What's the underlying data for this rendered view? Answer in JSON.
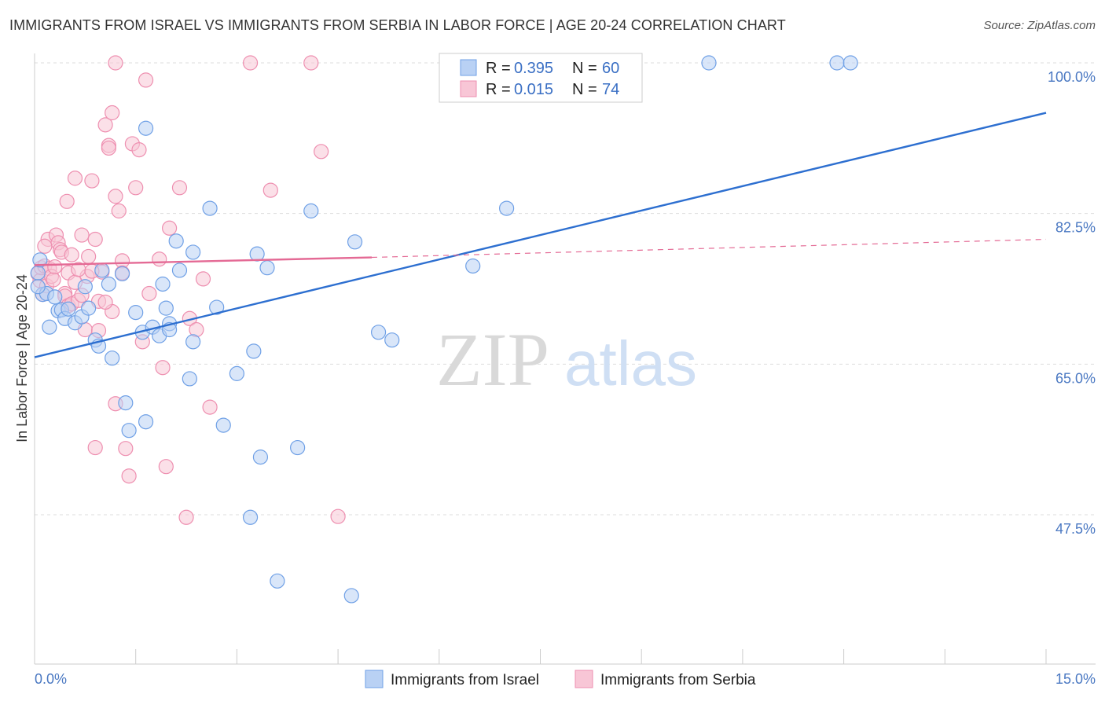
{
  "title": "IMMIGRANTS FROM ISRAEL VS IMMIGRANTS FROM SERBIA IN LABOR FORCE | AGE 20-24 CORRELATION CHART",
  "source": "Source: ZipAtlas.com",
  "watermark": {
    "zip": "ZIP",
    "atlas": "atlas"
  },
  "legend": {
    "rows": [
      {
        "r_label": "R =",
        "r_value": "0.395",
        "n_label": "N =",
        "n_value": "60"
      },
      {
        "r_label": "R =",
        "r_value": "0.015",
        "n_label": "N =",
        "n_value": "74"
      }
    ]
  },
  "chart_data": {
    "type": "scatter",
    "title": "IMMIGRANTS FROM ISRAEL VS IMMIGRANTS FROM SERBIA IN LABOR FORCE | AGE 20-24 CORRELATION CHART",
    "xlabel": "",
    "ylabel": "In Labor Force | Age 20-24",
    "xlim": [
      0,
      15
    ],
    "ylim": [
      31.5,
      102
    ],
    "x_tick_labels": [
      {
        "value": 0,
        "label": "0.0%"
      },
      {
        "value": 15,
        "label": "15.0%"
      }
    ],
    "y_tick_labels": [
      {
        "value": 100,
        "label": "100.0%"
      },
      {
        "value": 82.5,
        "label": "82.5%"
      },
      {
        "value": 65,
        "label": "65.0%"
      },
      {
        "value": 47.5,
        "label": "47.5%"
      }
    ],
    "y_grid": [
      100,
      82.5,
      65,
      47.5
    ],
    "grid": true,
    "legend_position": "top-center",
    "series": [
      {
        "name": "Immigrants from Israel",
        "color": "#6fa0e6",
        "fill": "#b9d1f4",
        "r": 0.395,
        "n": 60,
        "trend": {
          "x": [
            0,
            15
          ],
          "y": [
            65.8,
            94.2
          ],
          "color": "#2d6fd0"
        },
        "points": [
          [
            0.05,
            75.6
          ],
          [
            0.08,
            77.1
          ],
          [
            0.12,
            73.1
          ],
          [
            0.18,
            73.2
          ],
          [
            0.22,
            69.3
          ],
          [
            0.3,
            72.8
          ],
          [
            0.35,
            71.2
          ],
          [
            0.4,
            71.3
          ],
          [
            0.45,
            70.3
          ],
          [
            0.5,
            71.4
          ],
          [
            0.6,
            69.8
          ],
          [
            0.7,
            70.5
          ],
          [
            0.75,
            74.0
          ],
          [
            0.8,
            71.5
          ],
          [
            0.9,
            67.8
          ],
          [
            0.95,
            67.1
          ],
          [
            1.0,
            75.9
          ],
          [
            1.1,
            74.3
          ],
          [
            1.15,
            65.7
          ],
          [
            1.3,
            75.5
          ],
          [
            1.35,
            60.5
          ],
          [
            1.4,
            57.3
          ],
          [
            1.5,
            71.0
          ],
          [
            1.6,
            68.7
          ],
          [
            1.65,
            58.3
          ],
          [
            1.65,
            92.4
          ],
          [
            1.75,
            69.3
          ],
          [
            1.85,
            68.3
          ],
          [
            1.9,
            74.3
          ],
          [
            1.95,
            71.5
          ],
          [
            2.0,
            69.7
          ],
          [
            2.0,
            69.0
          ],
          [
            2.1,
            79.3
          ],
          [
            2.15,
            75.9
          ],
          [
            2.3,
            63.3
          ],
          [
            2.35,
            78.0
          ],
          [
            2.35,
            67.6
          ],
          [
            2.6,
            83.1
          ],
          [
            2.7,
            71.6
          ],
          [
            2.8,
            57.9
          ],
          [
            3.0,
            63.9
          ],
          [
            3.2,
            47.2
          ],
          [
            3.25,
            66.5
          ],
          [
            3.3,
            77.8
          ],
          [
            3.35,
            54.2
          ],
          [
            3.45,
            76.2
          ],
          [
            3.6,
            39.8
          ],
          [
            3.9,
            55.3
          ],
          [
            4.1,
            82.8
          ],
          [
            4.7,
            38.1
          ],
          [
            4.75,
            79.2
          ],
          [
            5.1,
            68.7
          ],
          [
            5.3,
            67.8
          ],
          [
            6.5,
            76.4
          ],
          [
            7.0,
            83.1
          ],
          [
            8.5,
            100.0
          ],
          [
            10.0,
            100.0
          ],
          [
            11.9,
            100.0
          ],
          [
            12.1,
            100.0
          ],
          [
            0.05,
            74.0
          ]
        ]
      },
      {
        "name": "Immigrants from Serbia",
        "color": "#ee8fb0",
        "fill": "#f8c6d6",
        "r": 0.015,
        "n": 74,
        "trend": {
          "x": [
            0,
            5.0
          ],
          "y": [
            76.5,
            77.4
          ],
          "color": "#e46a95",
          "dashed_x": [
            5.0,
            15
          ],
          "dashed_y": [
            77.4,
            79.5
          ]
        },
        "points": [
          [
            0.05,
            75.5
          ],
          [
            0.08,
            74.7
          ],
          [
            0.1,
            76.2
          ],
          [
            0.12,
            73.1
          ],
          [
            0.15,
            76.4
          ],
          [
            0.18,
            74.1
          ],
          [
            0.2,
            79.5
          ],
          [
            0.22,
            76.1
          ],
          [
            0.25,
            75.2
          ],
          [
            0.28,
            74.8
          ],
          [
            0.3,
            76.3
          ],
          [
            0.32,
            80.0
          ],
          [
            0.35,
            79.1
          ],
          [
            0.38,
            78.3
          ],
          [
            0.4,
            78.0
          ],
          [
            0.45,
            73.2
          ],
          [
            0.45,
            72.9
          ],
          [
            0.48,
            83.9
          ],
          [
            0.5,
            71.8
          ],
          [
            0.55,
            72.0
          ],
          [
            0.55,
            77.7
          ],
          [
            0.6,
            86.6
          ],
          [
            0.65,
            72.4
          ],
          [
            0.7,
            73.0
          ],
          [
            0.7,
            80.0
          ],
          [
            0.75,
            69.0
          ],
          [
            0.78,
            75.2
          ],
          [
            0.8,
            77.5
          ],
          [
            0.85,
            86.3
          ],
          [
            0.9,
            79.5
          ],
          [
            0.9,
            55.3
          ],
          [
            0.95,
            72.3
          ],
          [
            1.0,
            75.7
          ],
          [
            1.05,
            92.8
          ],
          [
            1.1,
            90.4
          ],
          [
            1.1,
            90.1
          ],
          [
            1.15,
            94.2
          ],
          [
            1.15,
            71.1
          ],
          [
            1.2,
            100.0
          ],
          [
            1.2,
            84.5
          ],
          [
            1.25,
            82.8
          ],
          [
            1.3,
            77.0
          ],
          [
            1.3,
            75.6
          ],
          [
            1.35,
            55.2
          ],
          [
            1.4,
            52.0
          ],
          [
            1.45,
            90.6
          ],
          [
            1.5,
            85.5
          ],
          [
            1.55,
            89.9
          ],
          [
            1.6,
            67.6
          ],
          [
            1.65,
            98.0
          ],
          [
            1.7,
            73.2
          ],
          [
            1.85,
            77.2
          ],
          [
            1.9,
            64.6
          ],
          [
            1.95,
            53.1
          ],
          [
            2.0,
            80.8
          ],
          [
            2.15,
            85.5
          ],
          [
            2.25,
            47.2
          ],
          [
            2.3,
            70.3
          ],
          [
            2.4,
            69.0
          ],
          [
            2.5,
            74.9
          ],
          [
            2.6,
            60.0
          ],
          [
            3.2,
            100.0
          ],
          [
            3.5,
            85.2
          ],
          [
            4.1,
            100.0
          ],
          [
            4.25,
            89.7
          ],
          [
            4.5,
            47.3
          ],
          [
            0.5,
            75.6
          ],
          [
            0.6,
            74.5
          ],
          [
            0.65,
            76.0
          ],
          [
            0.85,
            75.8
          ],
          [
            0.95,
            68.9
          ],
          [
            1.05,
            72.2
          ],
          [
            1.2,
            60.4
          ],
          [
            0.15,
            78.7
          ]
        ]
      }
    ]
  }
}
